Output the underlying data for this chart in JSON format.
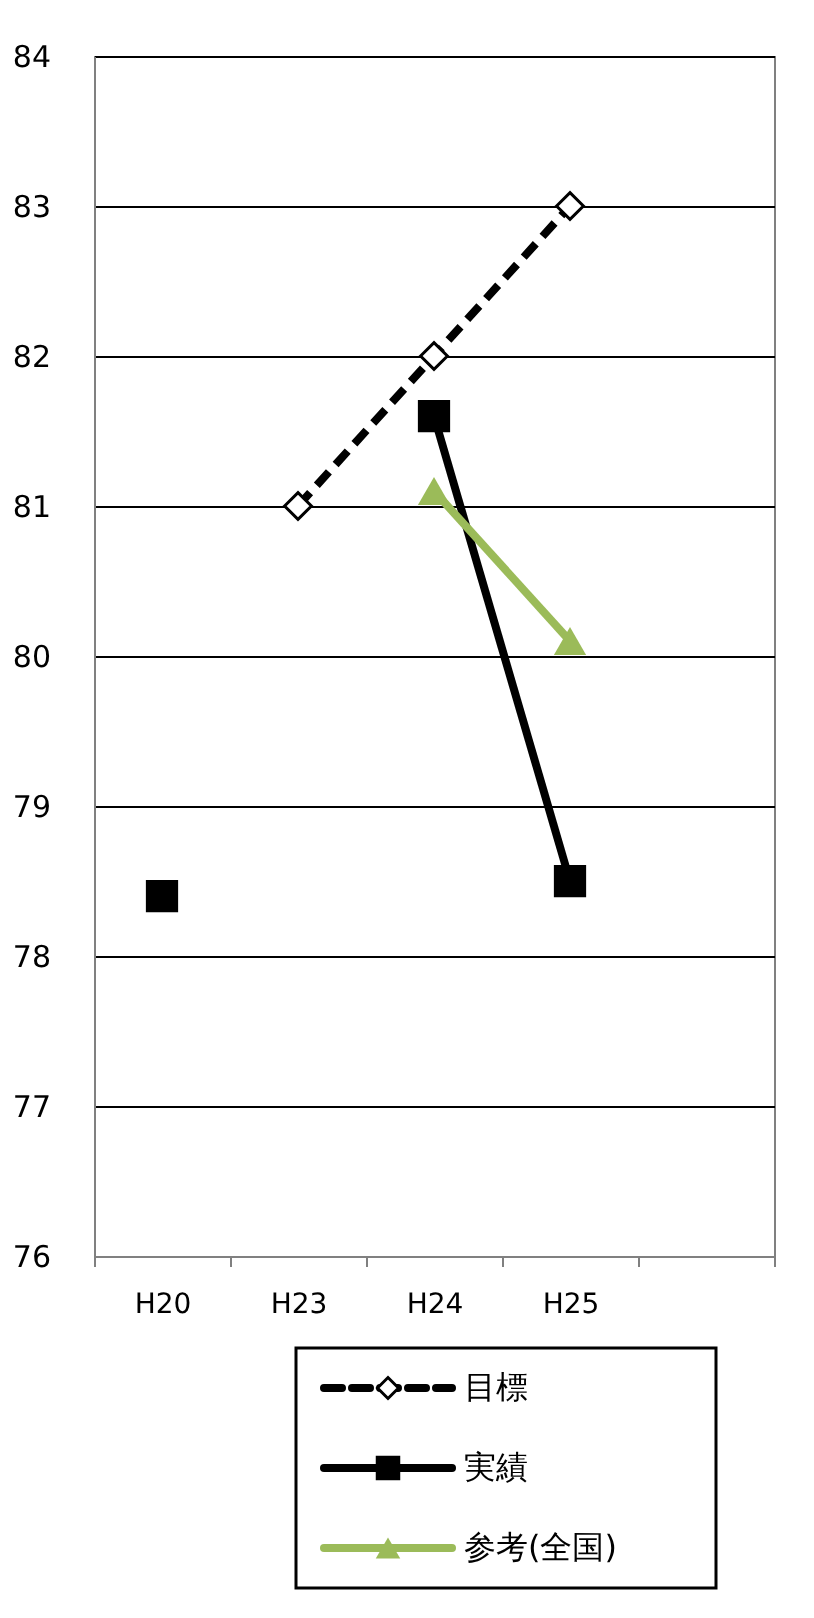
{
  "chart_data": {
    "type": "line",
    "categories": [
      "H20",
      "H23",
      "H24",
      "H25",
      null
    ],
    "series": [
      {
        "name": "目標",
        "color": "#000000",
        "values": [
          null,
          81,
          82,
          83,
          null
        ],
        "marker": "diamond",
        "line_style": "dashed"
      },
      {
        "name": "実績",
        "color": "#000000",
        "values": [
          78.4,
          null,
          81.6,
          78.5,
          null
        ],
        "marker": "square",
        "line_style": "solid"
      },
      {
        "name": "参考(全国)",
        "color": "#9bbb59",
        "values": [
          null,
          null,
          81.1,
          80.1,
          null
        ],
        "marker": "triangle",
        "line_style": "solid"
      }
    ],
    "ylim": [
      76,
      84
    ],
    "yticks": [
      76,
      77,
      78,
      79,
      80,
      81,
      82,
      83,
      84
    ],
    "grid": "y",
    "legend": "bottom right"
  }
}
